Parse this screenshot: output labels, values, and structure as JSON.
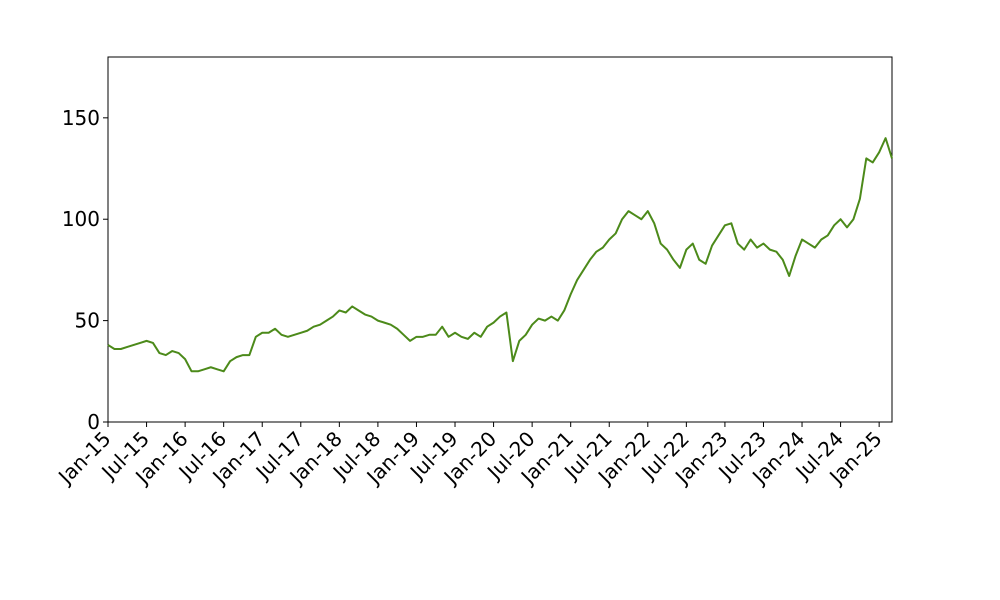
{
  "chart_data": {
    "type": "line",
    "x": [
      "2015-01",
      "2015-02",
      "2015-03",
      "2015-04",
      "2015-05",
      "2015-06",
      "2015-07",
      "2015-08",
      "2015-09",
      "2015-10",
      "2015-11",
      "2015-12",
      "2016-01",
      "2016-02",
      "2016-03",
      "2016-04",
      "2016-05",
      "2016-06",
      "2016-07",
      "2016-08",
      "2016-09",
      "2016-10",
      "2016-11",
      "2016-12",
      "2017-01",
      "2017-02",
      "2017-03",
      "2017-04",
      "2017-05",
      "2017-06",
      "2017-07",
      "2017-08",
      "2017-09",
      "2017-10",
      "2017-11",
      "2017-12",
      "2018-01",
      "2018-02",
      "2018-03",
      "2018-04",
      "2018-05",
      "2018-06",
      "2018-07",
      "2018-08",
      "2018-09",
      "2018-10",
      "2018-11",
      "2018-12",
      "2019-01",
      "2019-02",
      "2019-03",
      "2019-04",
      "2019-05",
      "2019-06",
      "2019-07",
      "2019-08",
      "2019-09",
      "2019-10",
      "2019-11",
      "2019-12",
      "2020-01",
      "2020-02",
      "2020-03",
      "2020-04",
      "2020-05",
      "2020-06",
      "2020-07",
      "2020-08",
      "2020-09",
      "2020-10",
      "2020-11",
      "2020-12",
      "2021-01",
      "2021-02",
      "2021-03",
      "2021-04",
      "2021-05",
      "2021-06",
      "2021-07",
      "2021-08",
      "2021-09",
      "2021-10",
      "2021-11",
      "2021-12",
      "2022-01",
      "2022-02",
      "2022-03",
      "2022-04",
      "2022-05",
      "2022-06",
      "2022-07",
      "2022-08",
      "2022-09",
      "2022-10",
      "2022-11",
      "2022-12",
      "2023-01",
      "2023-02",
      "2023-03",
      "2023-04",
      "2023-05",
      "2023-06",
      "2023-07",
      "2023-08",
      "2023-09",
      "2023-10",
      "2023-11",
      "2023-12",
      "2024-01",
      "2024-02",
      "2024-03",
      "2024-04",
      "2024-05",
      "2024-06",
      "2024-07",
      "2024-08",
      "2024-09",
      "2024-10",
      "2024-11",
      "2024-12",
      "2025-01",
      "2025-02",
      "2025-03"
    ],
    "series": [
      {
        "color": "#4c8a1a",
        "values": [
          38,
          36,
          36,
          37,
          38,
          39,
          40,
          39,
          34,
          33,
          35,
          34,
          31,
          25,
          25,
          26,
          27,
          26,
          25,
          30,
          32,
          33,
          33,
          42,
          44,
          44,
          46,
          43,
          42,
          43,
          44,
          45,
          47,
          48,
          50,
          52,
          55,
          54,
          57,
          55,
          53,
          52,
          50,
          49,
          48,
          46,
          43,
          40,
          42,
          42,
          43,
          43,
          47,
          42,
          44,
          42,
          41,
          44,
          42,
          47,
          49,
          52,
          54,
          30,
          40,
          43,
          48,
          51,
          50,
          52,
          50,
          55,
          63,
          70,
          75,
          80,
          84,
          86,
          90,
          93,
          100,
          104,
          102,
          100,
          104,
          98,
          88,
          85,
          80,
          76,
          85,
          88,
          80,
          78,
          87,
          92,
          97,
          98,
          88,
          85,
          90,
          86,
          88,
          85,
          84,
          80,
          72,
          82,
          90,
          88,
          86,
          90,
          92,
          97,
          100,
          96,
          100,
          110,
          130,
          128,
          133,
          140,
          130
        ]
      }
    ],
    "xlim": [
      "2015-01",
      "2025-03"
    ],
    "xticks": [
      {
        "value": "2015-01",
        "label": "Jan-15"
      },
      {
        "value": "2015-07",
        "label": "Jul-15"
      },
      {
        "value": "2016-01",
        "label": "Jan-16"
      },
      {
        "value": "2016-07",
        "label": "Jul-16"
      },
      {
        "value": "2017-01",
        "label": "Jan-17"
      },
      {
        "value": "2017-07",
        "label": "Jul-17"
      },
      {
        "value": "2018-01",
        "label": "Jan-18"
      },
      {
        "value": "2018-07",
        "label": "Jul-18"
      },
      {
        "value": "2019-01",
        "label": "Jan-19"
      },
      {
        "value": "2019-07",
        "label": "Jul-19"
      },
      {
        "value": "2020-01",
        "label": "Jan-20"
      },
      {
        "value": "2020-07",
        "label": "Jul-20"
      },
      {
        "value": "2021-01",
        "label": "Jan-21"
      },
      {
        "value": "2021-07",
        "label": "Jul-21"
      },
      {
        "value": "2022-01",
        "label": "Jan-22"
      },
      {
        "value": "2022-07",
        "label": "Jul-22"
      },
      {
        "value": "2023-01",
        "label": "Jan-23"
      },
      {
        "value": "2023-07",
        "label": "Jul-23"
      },
      {
        "value": "2024-01",
        "label": "Jan-24"
      },
      {
        "value": "2024-07",
        "label": "Jul-24"
      },
      {
        "value": "2025-01",
        "label": "Jan-25"
      }
    ],
    "ylim": [
      0,
      180
    ],
    "yticks": [
      0,
      50,
      100,
      150
    ]
  }
}
